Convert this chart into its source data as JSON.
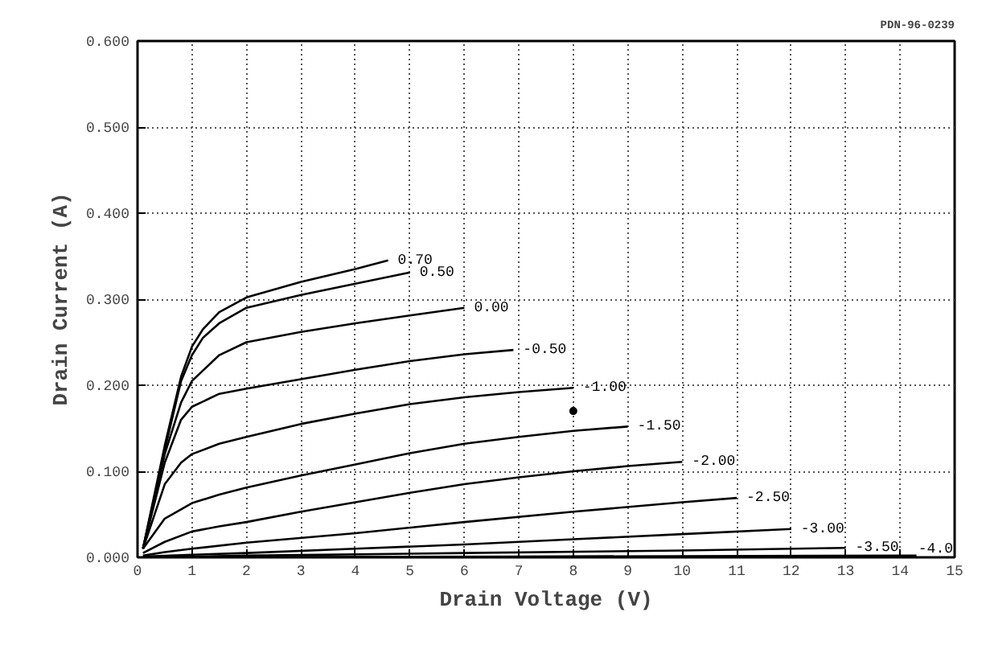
{
  "chart_data": {
    "type": "line",
    "xlabel": "Drain Voltage (V)",
    "ylabel": "Drain Current (A)",
    "annotations": [
      "PDN-96-0239"
    ],
    "xlim": [
      0,
      15
    ],
    "ylim": [
      0,
      0.6
    ],
    "xticks": [
      0,
      1,
      2,
      3,
      4,
      5,
      6,
      7,
      8,
      9,
      10,
      11,
      12,
      13,
      14,
      15
    ],
    "yticks": [
      {
        "value": 0,
        "label": "0.000"
      },
      {
        "value": 0.1,
        "label": "0.100"
      },
      {
        "value": 0.2,
        "label": "0.200"
      },
      {
        "value": 0.3,
        "label": "0.300"
      },
      {
        "value": 0.4,
        "label": "0.400"
      },
      {
        "value": 0.5,
        "label": "0.500"
      },
      {
        "value": 0.6,
        "label": "0.600"
      }
    ],
    "grid": true,
    "legend": "bottom right",
    "marker": "none",
    "line_style": "solid",
    "series": [
      {
        "name": "0.70",
        "color": "#000000",
        "x": [
          0.1,
          0.5,
          0.8,
          1,
          1.2,
          1.5,
          2,
          3,
          4,
          4.6
        ],
        "values": [
          0.01,
          0.13,
          0.21,
          0.245,
          0.265,
          0.285,
          0.302,
          0.32,
          0.335,
          0.345
        ]
      },
      {
        "name": "0.50",
        "color": "#000000",
        "x": [
          0.1,
          0.5,
          0.8,
          1,
          1.2,
          1.5,
          2,
          3,
          4,
          5
        ],
        "values": [
          0.01,
          0.125,
          0.205,
          0.235,
          0.255,
          0.272,
          0.29,
          0.305,
          0.318,
          0.331
        ]
      },
      {
        "name": "0.00",
        "color": "#000000",
        "x": [
          0.1,
          0.5,
          0.8,
          1,
          1.5,
          2,
          3,
          4,
          5,
          6
        ],
        "values": [
          0.01,
          0.12,
          0.18,
          0.205,
          0.235,
          0.25,
          0.262,
          0.272,
          0.281,
          0.29
        ]
      },
      {
        "name": "-0.50",
        "color": "#000000",
        "x": [
          0.1,
          0.5,
          0.8,
          1,
          1.5,
          2,
          3,
          4,
          5,
          6,
          6.9
        ],
        "values": [
          0.01,
          0.11,
          0.16,
          0.175,
          0.19,
          0.196,
          0.207,
          0.218,
          0.228,
          0.236,
          0.241
        ]
      },
      {
        "name": "-1.00",
        "color": "#000000",
        "x": [
          0.1,
          0.5,
          0.8,
          1,
          1.5,
          2,
          3,
          4,
          5,
          6,
          7,
          8
        ],
        "values": [
          0.01,
          0.085,
          0.11,
          0.12,
          0.132,
          0.14,
          0.155,
          0.167,
          0.178,
          0.186,
          0.192,
          0.197
        ]
      },
      {
        "name": "-1.50",
        "color": "#000000",
        "x": [
          0.1,
          0.5,
          1,
          1.5,
          2,
          3,
          4,
          5,
          6,
          7,
          8,
          9
        ],
        "values": [
          0.01,
          0.045,
          0.063,
          0.073,
          0.081,
          0.095,
          0.108,
          0.121,
          0.132,
          0.14,
          0.147,
          0.152
        ]
      },
      {
        "name": "-2.00",
        "color": "#000000",
        "x": [
          0.1,
          0.5,
          1,
          1.5,
          2,
          3,
          4,
          5,
          6,
          7,
          8,
          9,
          10
        ],
        "values": [
          0.005,
          0.018,
          0.03,
          0.036,
          0.041,
          0.053,
          0.064,
          0.075,
          0.085,
          0.093,
          0.1,
          0.106,
          0.111
        ]
      },
      {
        "name": "-2.50",
        "color": "#000000",
        "x": [
          0.1,
          0.5,
          1,
          2,
          4,
          6,
          8,
          10,
          11
        ],
        "values": [
          0.002,
          0.006,
          0.01,
          0.017,
          0.028,
          0.041,
          0.053,
          0.064,
          0.069
        ]
      },
      {
        "name": "-3.00",
        "color": "#000000",
        "x": [
          0.1,
          1,
          2,
          4,
          6,
          8,
          10,
          12
        ],
        "values": [
          0.001,
          0.003,
          0.005,
          0.01,
          0.015,
          0.021,
          0.027,
          0.033
        ]
      },
      {
        "name": "-3.50",
        "color": "#000000",
        "x": [
          0.1,
          2,
          6,
          10,
          13
        ],
        "values": [
          0,
          0.002,
          0.005,
          0.008,
          0.011
        ]
      },
      {
        "name": "-4.0",
        "color": "#000000",
        "x": [
          0.1,
          7,
          14.3
        ],
        "values": [
          0,
          0.001,
          0.002
        ]
      },
      {
        "type": "scatter",
        "color": "#000000",
        "marker": "circle",
        "x": [
          8
        ],
        "values": [
          0.17
        ]
      }
    ]
  }
}
